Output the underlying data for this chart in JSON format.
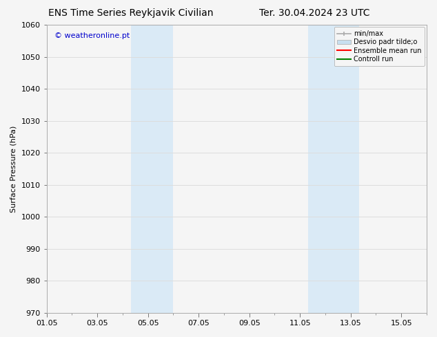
{
  "title_left": "ENS Time Series Reykjavik Civilian",
  "title_right": "Ter. 30.04.2024 23 UTC",
  "ylabel": "Surface Pressure (hPa)",
  "ylim": [
    970,
    1060
  ],
  "yticks": [
    970,
    980,
    990,
    1000,
    1010,
    1020,
    1030,
    1040,
    1050,
    1060
  ],
  "xlim": [
    0,
    15
  ],
  "xtick_labels": [
    "01.05",
    "03.05",
    "05.05",
    "07.05",
    "09.05",
    "11.05",
    "13.05",
    "15.05"
  ],
  "xtick_positions": [
    0,
    2,
    4,
    6,
    8,
    10,
    12,
    14
  ],
  "shaded_bands": [
    {
      "x_start": 3.33,
      "x_end": 5.0,
      "color": "#daeaf6"
    },
    {
      "x_start": 10.33,
      "x_end": 12.33,
      "color": "#daeaf6"
    }
  ],
  "watermark": "© weatheronline.pt",
  "watermark_color": "#0000cc",
  "background_color": "#f5f5f5",
  "plot_bg_color": "#f5f5f5",
  "grid_color": "#dddddd",
  "spine_color": "#aaaaaa",
  "title_fontsize": 10,
  "axis_label_fontsize": 8,
  "tick_fontsize": 8,
  "legend_fontsize": 7,
  "legend_labels": [
    "min/max",
    "Desvio padr tilde;o",
    "Ensemble mean run",
    "Controll run"
  ],
  "legend_colors": [
    "#aaaaaa",
    "#c8dff0",
    "#ff0000",
    "#008000"
  ]
}
